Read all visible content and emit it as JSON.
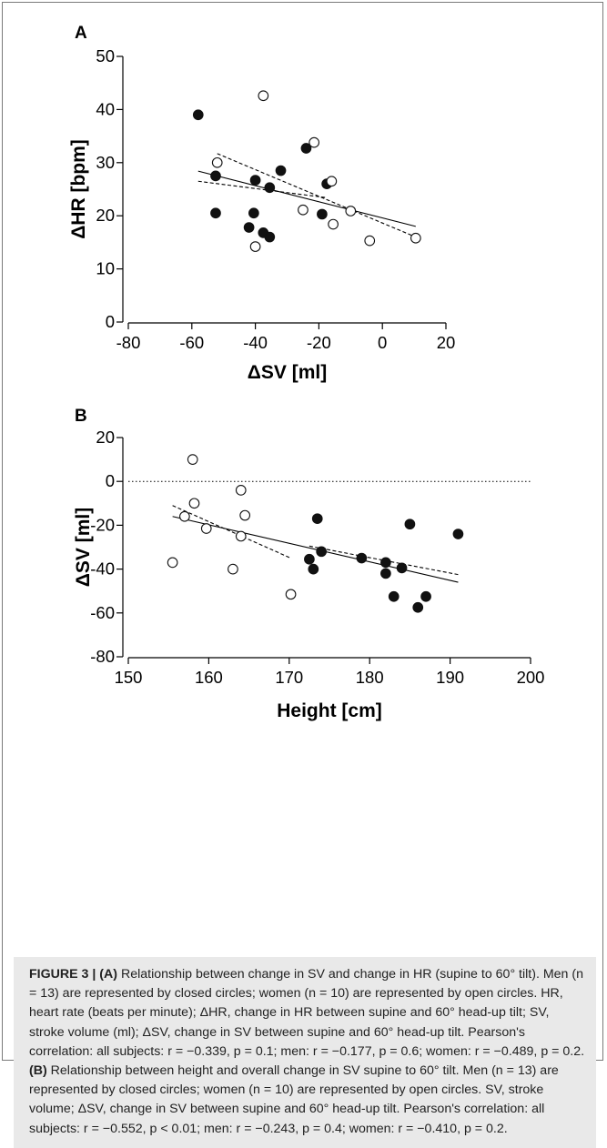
{
  "chart_data": [
    {
      "type": "scatter",
      "panel_label": "A",
      "xlabel": "ΔSV [ml]",
      "ylabel": "ΔHR [bpm]",
      "xlim": [
        -80,
        20
      ],
      "ylim": [
        0,
        50
      ],
      "xticks": [
        -80,
        -60,
        -40,
        -20,
        0,
        20
      ],
      "yticks": [
        0,
        10,
        20,
        30,
        40,
        50
      ],
      "series": [
        {
          "marker": "closed-circle",
          "x": [
            -58,
            -52.5,
            -52.5,
            -42,
            -40.5,
            -40,
            -37.5,
            -35.5,
            -35.5,
            -32,
            -24,
            -19,
            -17.5
          ],
          "y": [
            39,
            20.5,
            27.5,
            17.8,
            20.5,
            26.7,
            16.8,
            25.3,
            16,
            28.5,
            32.7,
            20.3,
            26
          ]
        },
        {
          "marker": "open-circle",
          "x": [
            -52,
            -40,
            -37.5,
            -25,
            -21.5,
            -16,
            -15.5,
            -10,
            -4,
            10.5
          ],
          "y": [
            30,
            14.2,
            42.6,
            21.1,
            33.8,
            26.5,
            18.4,
            20.9,
            15.3,
            15.8
          ]
        }
      ],
      "fits": [
        {
          "style": "solid",
          "x": [
            -58,
            10.5
          ],
          "y": [
            28.4,
            18.0
          ]
        },
        {
          "style": "dashed",
          "x": [
            -52,
            10.5
          ],
          "y": [
            31.7,
            16.0
          ]
        },
        {
          "style": "dashed",
          "x": [
            -58,
            -17.5
          ],
          "y": [
            26.5,
            23.4
          ]
        }
      ]
    },
    {
      "type": "scatter",
      "panel_label": "B",
      "xlabel": "Height [cm]",
      "ylabel": "ΔSV [ml]",
      "xlim": [
        150,
        200
      ],
      "ylim": [
        -80,
        20
      ],
      "xticks": [
        150,
        160,
        170,
        180,
        190,
        200
      ],
      "yticks": [
        -80,
        -60,
        -40,
        -20,
        0,
        20
      ],
      "reference_line": {
        "y": 0,
        "style": "dotted"
      },
      "series": [
        {
          "marker": "closed-circle",
          "x": [
            172.5,
            173,
            173.5,
            174,
            179,
            182,
            182,
            183,
            184,
            185,
            186,
            187,
            191
          ],
          "y": [
            -35.5,
            -40,
            -17,
            -32,
            -35,
            -37,
            -42,
            -52.5,
            -39.5,
            -19.5,
            -57.5,
            -52.5,
            -24
          ]
        },
        {
          "marker": "open-circle",
          "x": [
            155.5,
            157,
            158,
            158.2,
            159.7,
            163,
            164,
            164,
            164.5,
            170.2
          ],
          "y": [
            -37,
            -16,
            10,
            -10,
            -21.5,
            -40,
            -4,
            -25,
            -15.5,
            -51.5
          ]
        }
      ],
      "fits": [
        {
          "style": "solid",
          "x": [
            155.5,
            191
          ],
          "y": [
            -16,
            -46
          ]
        },
        {
          "style": "dashed",
          "x": [
            155.5,
            170.2
          ],
          "y": [
            -11,
            -35
          ]
        },
        {
          "style": "dashed",
          "x": [
            172.5,
            191
          ],
          "y": [
            -29.5,
            -42.5
          ]
        }
      ]
    }
  ],
  "caption": {
    "label": "FIGURE 3 |",
    "part_a_label": "(A)",
    "part_a_text": "Relationship between change in SV and change in HR (supine to 60° tilt). Men (n = 13) are represented by closed circles; women (n = 10) are represented by open circles. HR, heart rate (beats per minute); ΔHR, change in HR between supine and 60° head-up tilt; SV, stroke volume (ml); ΔSV, change in SV between supine and 60° head-up tilt. Pearson's correlation: all subjects: r = −0.339, p = 0.1; men: r = −0.177, p = 0.6; women: r = −0.489, p = 0.2.",
    "part_b_label": "(B)",
    "part_b_text": "Relationship between height and overall change in SV supine to 60° tilt. Men (n = 13) are represented by closed circles; women (n = 10) are represented by open circles. SV, stroke volume; ΔSV, change in SV between supine and 60° head-up tilt. Pearson's correlation: all subjects: r = −0.552, p < 0.01; men: r = −0.243, p = 0.4; women: r = −0.410, p = 0.2."
  }
}
